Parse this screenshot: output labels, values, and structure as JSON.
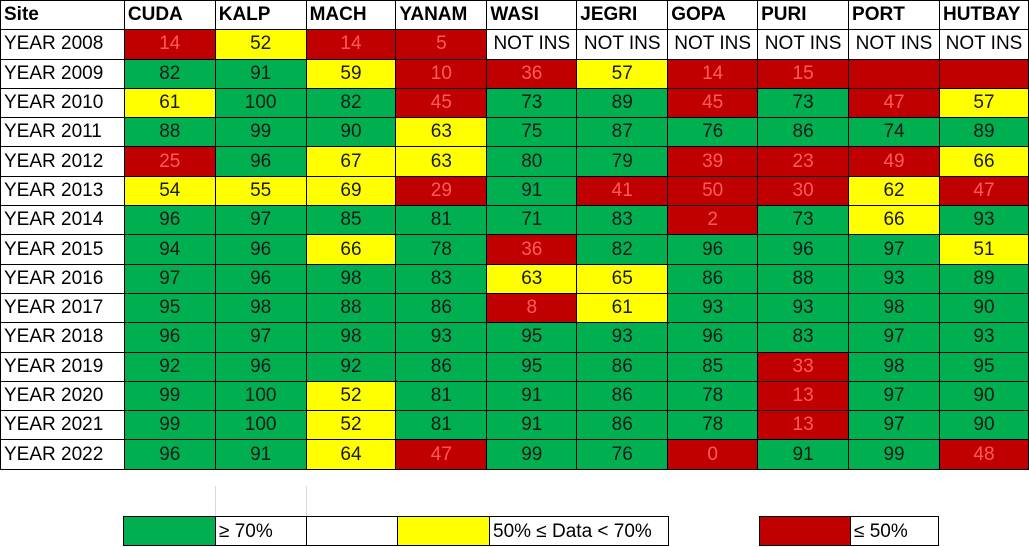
{
  "table": {
    "header_label": "Site",
    "sites": [
      "CUDA",
      "KALP",
      "MACH",
      "YANAM",
      "WASI",
      "JEGRI",
      "GOPA",
      "PURI",
      "PORT",
      "HUTBAY"
    ],
    "rows": [
      {
        "label": "YEAR 2008",
        "cells": [
          {
            "text": "14",
            "status": "red"
          },
          {
            "text": "52",
            "status": "yellow"
          },
          {
            "text": "14",
            "status": "red"
          },
          {
            "text": "5",
            "status": "red"
          },
          {
            "text": "NOT INS",
            "status": "none"
          },
          {
            "text": "NOT INS",
            "status": "none"
          },
          {
            "text": "NOT INS",
            "status": "none"
          },
          {
            "text": "NOT INS",
            "status": "none"
          },
          {
            "text": "NOT INS",
            "status": "none"
          },
          {
            "text": "NOT INS",
            "status": "none"
          }
        ]
      },
      {
        "label": "YEAR 2009",
        "cells": [
          {
            "text": "82",
            "status": "green"
          },
          {
            "text": "91",
            "status": "green"
          },
          {
            "text": "59",
            "status": "yellow"
          },
          {
            "text": "10",
            "status": "red"
          },
          {
            "text": "36",
            "status": "red"
          },
          {
            "text": "57",
            "status": "yellow"
          },
          {
            "text": "14",
            "status": "red"
          },
          {
            "text": "15",
            "status": "red"
          },
          {
            "text": "",
            "status": "red"
          },
          {
            "text": "",
            "status": "red"
          }
        ]
      },
      {
        "label": "YEAR 2010",
        "cells": [
          {
            "text": "61",
            "status": "yellow"
          },
          {
            "text": "100",
            "status": "green"
          },
          {
            "text": "82",
            "status": "green"
          },
          {
            "text": "45",
            "status": "red"
          },
          {
            "text": "73",
            "status": "green"
          },
          {
            "text": "89",
            "status": "green"
          },
          {
            "text": "45",
            "status": "red"
          },
          {
            "text": "73",
            "status": "green"
          },
          {
            "text": "47",
            "status": "red"
          },
          {
            "text": "57",
            "status": "yellow"
          }
        ]
      },
      {
        "label": "YEAR 2011",
        "cells": [
          {
            "text": "88",
            "status": "green"
          },
          {
            "text": "99",
            "status": "green"
          },
          {
            "text": "90",
            "status": "green"
          },
          {
            "text": "63",
            "status": "yellow"
          },
          {
            "text": "75",
            "status": "green"
          },
          {
            "text": "87",
            "status": "green"
          },
          {
            "text": "76",
            "status": "green"
          },
          {
            "text": "86",
            "status": "green"
          },
          {
            "text": "74",
            "status": "green"
          },
          {
            "text": "89",
            "status": "green"
          }
        ]
      },
      {
        "label": "YEAR 2012",
        "cells": [
          {
            "text": "25",
            "status": "red"
          },
          {
            "text": "96",
            "status": "green"
          },
          {
            "text": "67",
            "status": "yellow"
          },
          {
            "text": "63",
            "status": "yellow"
          },
          {
            "text": "80",
            "status": "green"
          },
          {
            "text": "79",
            "status": "green"
          },
          {
            "text": "39",
            "status": "red"
          },
          {
            "text": "23",
            "status": "red"
          },
          {
            "text": "49",
            "status": "red"
          },
          {
            "text": "66",
            "status": "yellow"
          }
        ]
      },
      {
        "label": "YEAR 2013",
        "cells": [
          {
            "text": "54",
            "status": "yellow"
          },
          {
            "text": "55",
            "status": "yellow"
          },
          {
            "text": "69",
            "status": "yellow"
          },
          {
            "text": "29",
            "status": "red"
          },
          {
            "text": "91",
            "status": "green"
          },
          {
            "text": "41",
            "status": "red"
          },
          {
            "text": "50",
            "status": "red"
          },
          {
            "text": "30",
            "status": "red"
          },
          {
            "text": "62",
            "status": "yellow"
          },
          {
            "text": "47",
            "status": "red"
          }
        ]
      },
      {
        "label": "YEAR 2014",
        "cells": [
          {
            "text": "96",
            "status": "green"
          },
          {
            "text": "97",
            "status": "green"
          },
          {
            "text": "85",
            "status": "green"
          },
          {
            "text": "81",
            "status": "green"
          },
          {
            "text": "71",
            "status": "green"
          },
          {
            "text": "83",
            "status": "green"
          },
          {
            "text": "2",
            "status": "red"
          },
          {
            "text": "73",
            "status": "green"
          },
          {
            "text": "66",
            "status": "yellow"
          },
          {
            "text": "93",
            "status": "green"
          }
        ]
      },
      {
        "label": "YEAR 2015",
        "cells": [
          {
            "text": "94",
            "status": "green"
          },
          {
            "text": "96",
            "status": "green"
          },
          {
            "text": "66",
            "status": "yellow"
          },
          {
            "text": "78",
            "status": "green"
          },
          {
            "text": "36",
            "status": "red"
          },
          {
            "text": "82",
            "status": "green"
          },
          {
            "text": "96",
            "status": "green"
          },
          {
            "text": "96",
            "status": "green"
          },
          {
            "text": "97",
            "status": "green"
          },
          {
            "text": "51",
            "status": "yellow"
          }
        ]
      },
      {
        "label": "YEAR 2016",
        "cells": [
          {
            "text": "97",
            "status": "green"
          },
          {
            "text": "96",
            "status": "green"
          },
          {
            "text": "98",
            "status": "green"
          },
          {
            "text": "83",
            "status": "green"
          },
          {
            "text": "63",
            "status": "yellow"
          },
          {
            "text": "65",
            "status": "yellow"
          },
          {
            "text": "86",
            "status": "green"
          },
          {
            "text": "88",
            "status": "green"
          },
          {
            "text": "93",
            "status": "green"
          },
          {
            "text": "89",
            "status": "green"
          }
        ]
      },
      {
        "label": "YEAR 2017",
        "cells": [
          {
            "text": "95",
            "status": "green"
          },
          {
            "text": "98",
            "status": "green"
          },
          {
            "text": "88",
            "status": "green"
          },
          {
            "text": "86",
            "status": "green"
          },
          {
            "text": "8",
            "status": "red"
          },
          {
            "text": "61",
            "status": "yellow"
          },
          {
            "text": "93",
            "status": "green"
          },
          {
            "text": "93",
            "status": "green"
          },
          {
            "text": "98",
            "status": "green"
          },
          {
            "text": "90",
            "status": "green"
          }
        ]
      },
      {
        "label": "YEAR 2018",
        "cells": [
          {
            "text": "96",
            "status": "green"
          },
          {
            "text": "97",
            "status": "green"
          },
          {
            "text": "98",
            "status": "green"
          },
          {
            "text": "93",
            "status": "green"
          },
          {
            "text": "95",
            "status": "green"
          },
          {
            "text": "93",
            "status": "green"
          },
          {
            "text": "96",
            "status": "green"
          },
          {
            "text": "83",
            "status": "green"
          },
          {
            "text": "97",
            "status": "green"
          },
          {
            "text": "93",
            "status": "green"
          }
        ]
      },
      {
        "label": "YEAR 2019",
        "cells": [
          {
            "text": "92",
            "status": "green"
          },
          {
            "text": "96",
            "status": "green"
          },
          {
            "text": "92",
            "status": "green"
          },
          {
            "text": "86",
            "status": "green"
          },
          {
            "text": "95",
            "status": "green"
          },
          {
            "text": "86",
            "status": "green"
          },
          {
            "text": "85",
            "status": "green"
          },
          {
            "text": "33",
            "status": "red"
          },
          {
            "text": "98",
            "status": "green"
          },
          {
            "text": "95",
            "status": "green"
          }
        ]
      },
      {
        "label": "YEAR 2020",
        "cells": [
          {
            "text": "99",
            "status": "green"
          },
          {
            "text": "100",
            "status": "green"
          },
          {
            "text": "52",
            "status": "yellow"
          },
          {
            "text": "81",
            "status": "green"
          },
          {
            "text": "91",
            "status": "green"
          },
          {
            "text": "86",
            "status": "green"
          },
          {
            "text": "78",
            "status": "green"
          },
          {
            "text": "13",
            "status": "red"
          },
          {
            "text": "97",
            "status": "green"
          },
          {
            "text": "90",
            "status": "green"
          }
        ]
      },
      {
        "label": "YEAR 2021",
        "cells": [
          {
            "text": "99",
            "status": "green"
          },
          {
            "text": "100",
            "status": "green"
          },
          {
            "text": "52",
            "status": "yellow"
          },
          {
            "text": "81",
            "status": "green"
          },
          {
            "text": "91",
            "status": "green"
          },
          {
            "text": "86",
            "status": "green"
          },
          {
            "text": "78",
            "status": "green"
          },
          {
            "text": "13",
            "status": "red"
          },
          {
            "text": "97",
            "status": "green"
          },
          {
            "text": "90",
            "status": "green"
          }
        ]
      },
      {
        "label": "YEAR 2022",
        "cells": [
          {
            "text": "96",
            "status": "green"
          },
          {
            "text": "91",
            "status": "green"
          },
          {
            "text": "64",
            "status": "yellow"
          },
          {
            "text": "47",
            "status": "red"
          },
          {
            "text": "99",
            "status": "green"
          },
          {
            "text": "76",
            "status": "green"
          },
          {
            "text": "0",
            "status": "red"
          },
          {
            "text": "91",
            "status": "green"
          },
          {
            "text": "99",
            "status": "green"
          },
          {
            "text": "48",
            "status": "red"
          }
        ]
      }
    ]
  },
  "legend": [
    {
      "status": "green",
      "label": "≥ 70%"
    },
    {
      "status": "yellow",
      "label": "50% ≤ Data < 70%"
    },
    {
      "status": "red",
      "label": "≤ 50%"
    }
  ],
  "colors": {
    "green": "#00b050",
    "yellow": "#ffff00",
    "red": "#c00000",
    "red_text": "#ff5a5a"
  }
}
